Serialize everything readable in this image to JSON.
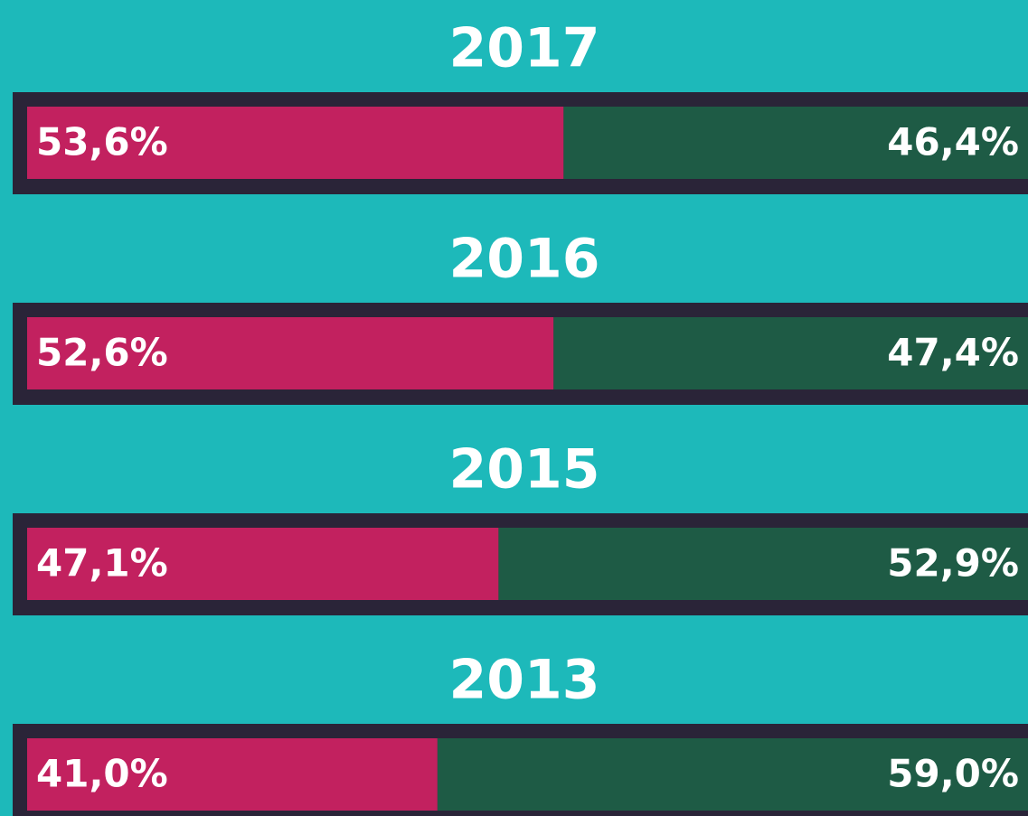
{
  "chart_data": {
    "type": "bar",
    "orientation": "horizontal",
    "stacked": true,
    "categories": [
      "2017",
      "2016",
      "2015",
      "2013"
    ],
    "xlim": [
      0,
      100
    ],
    "series": [
      {
        "color": "#c2215f",
        "values": [
          53.6,
          52.6,
          47.1,
          41.0
        ],
        "value_labels": [
          "53,6%",
          "52,6%",
          "47,1%",
          "41,0%"
        ]
      },
      {
        "color": "#1e5b45",
        "values": [
          46.4,
          47.4,
          52.9,
          59.0
        ],
        "value_labels": [
          "46,4%",
          "47,4%",
          "52,9%",
          "59,0%"
        ]
      }
    ]
  }
}
